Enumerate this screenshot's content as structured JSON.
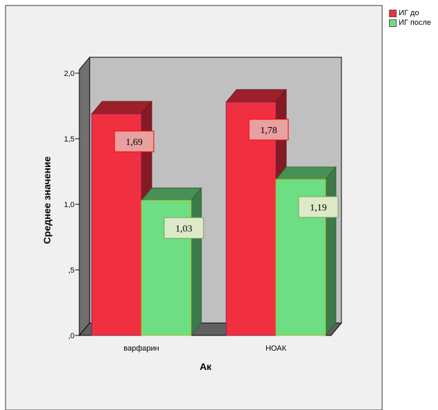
{
  "chart_data": {
    "type": "bar",
    "title": "",
    "xlabel": "Ак",
    "ylabel": "Среднее значение",
    "categories": [
      "варфарин",
      "НОАК"
    ],
    "series": [
      {
        "name": "ИГ до",
        "values": [
          1.69,
          1.78
        ],
        "color": "#f03040",
        "labels": [
          "1,69",
          "1,78"
        ]
      },
      {
        "name": "ИГ после",
        "values": [
          1.03,
          1.19
        ],
        "color": "#6dde84",
        "labels": [
          "1,03",
          "1,19"
        ]
      }
    ],
    "ylim": [
      0,
      2.0
    ],
    "yticks": [
      0,
      0.5,
      1.0,
      1.5,
      2.0
    ],
    "ytick_labels": [
      ",0",
      ",5",
      "1,0",
      "1,5",
      "2,0"
    ],
    "grid": false,
    "legend_position": "top-right",
    "background": "#c0c0c0",
    "frame_fill": "#f0f0f0"
  }
}
